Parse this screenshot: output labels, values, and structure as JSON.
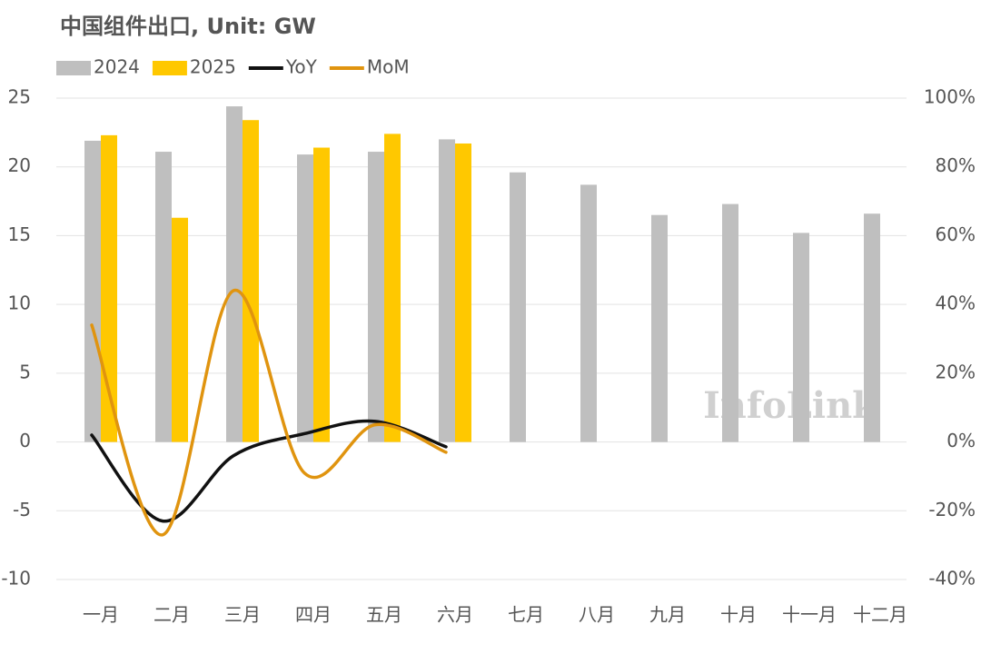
{
  "chart_data": {
    "type": "bar-line",
    "title": "中国组件出口, Unit: GW",
    "watermark": "InfoLink",
    "categories": [
      "一月",
      "二月",
      "三月",
      "四月",
      "五月",
      "六月",
      "七月",
      "八月",
      "九月",
      "十月",
      "十一月",
      "十二月"
    ],
    "series": [
      {
        "name": "2024",
        "type": "bar",
        "color": "#bfbfbf",
        "values": [
          21.9,
          21.1,
          24.4,
          20.9,
          21.1,
          22.0,
          19.6,
          18.7,
          16.5,
          17.3,
          15.2,
          16.6
        ]
      },
      {
        "name": "2025",
        "type": "bar",
        "color": "#ffc800",
        "values": [
          22.3,
          16.3,
          23.4,
          21.4,
          22.4,
          21.7,
          null,
          null,
          null,
          null,
          null,
          null
        ]
      },
      {
        "name": "YoY",
        "type": "line",
        "axis": "y2",
        "color": "#111111",
        "values": [
          2,
          -23,
          -4,
          2.4,
          6,
          -1.4,
          null,
          null,
          null,
          null,
          null,
          null
        ]
      },
      {
        "name": "MoM",
        "type": "line",
        "axis": "y2",
        "color": "#e0940f",
        "values": [
          34,
          -27,
          44,
          -9,
          5,
          -3,
          null,
          null,
          null,
          null,
          null,
          null
        ]
      }
    ],
    "ylim": [
      -10,
      25
    ],
    "yticks": [
      -10,
      -5,
      0,
      5,
      10,
      15,
      20,
      25
    ],
    "y2lim": [
      -40,
      100
    ],
    "y2ticks": [
      {
        "value": -40,
        "label": "-40%"
      },
      {
        "value": -20,
        "label": "-20%"
      },
      {
        "value": 0,
        "label": "0%"
      },
      {
        "value": 20,
        "label": "20%"
      },
      {
        "value": 40,
        "label": "40%"
      },
      {
        "value": 60,
        "label": "60%"
      },
      {
        "value": 80,
        "label": "80%"
      },
      {
        "value": 100,
        "label": "100%"
      }
    ],
    "grid": true,
    "legend": "top-left"
  }
}
